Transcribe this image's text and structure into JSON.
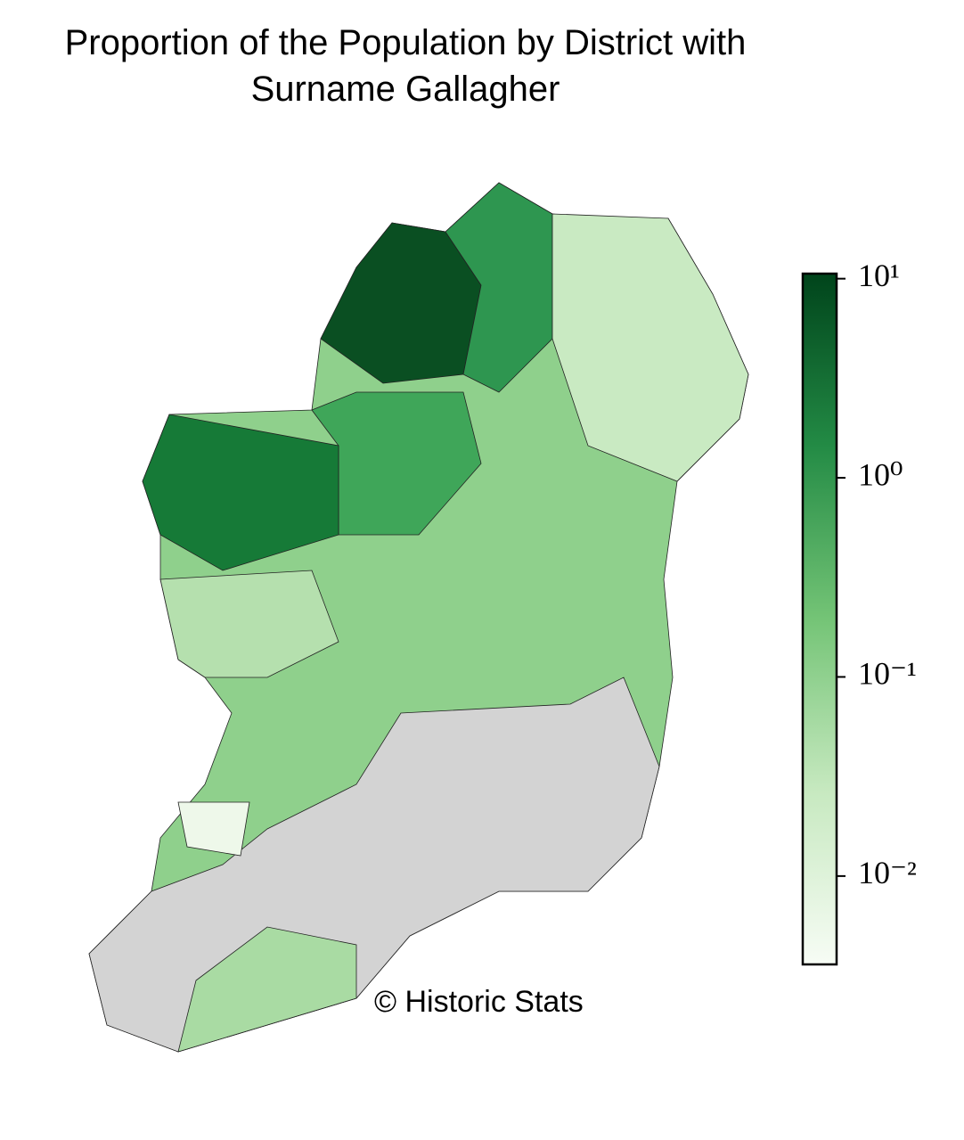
{
  "chart_data": {
    "type": "choropleth",
    "title": "Proportion of the Population by District with Surname Gallagher",
    "credit": "© Historic Stats",
    "colorbar": {
      "scale": "log",
      "colormap": "Greens",
      "lim": [
        0.0036,
        10.6
      ],
      "ticks": [
        {
          "value": 10,
          "label": "10¹"
        },
        {
          "value": 1,
          "label": "10⁰"
        },
        {
          "value": 0.1,
          "label": "10⁻¹"
        },
        {
          "value": 0.01,
          "label": "10⁻²"
        }
      ]
    },
    "missing_color": "#d3d3d3"
  }
}
